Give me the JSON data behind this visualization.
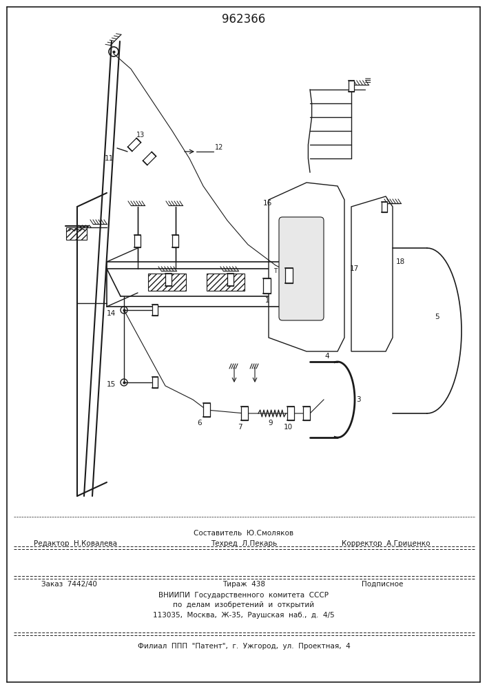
{
  "patent_number": "962366",
  "bg": "#ffffff",
  "lc": "#1a1a1a",
  "fig_w": 7.07,
  "fig_h": 10.0,
  "footer": {
    "compiler": "Составитель  Ю.Смоляков",
    "editor": "Редактор  Н.Ковалева",
    "techred": "Техред  Л.Пекарь",
    "corrector": "Корректор  А.Гриценко",
    "order": "Заказ  7442/40",
    "edition": "Тираж  438",
    "subscription": "Подписное",
    "org1": "ВНИИПИ  Государственного  комитета  СССР",
    "org2": "по  делам  изобретений  и  открытий",
    "addr": "113035,  Москва,  Ж-35,  Раушская  наб.,  д.  4/5",
    "branch": "Филиал  ППП  \"Патент\",  г.  Ужгород,  ул.  Проектная,  4"
  }
}
